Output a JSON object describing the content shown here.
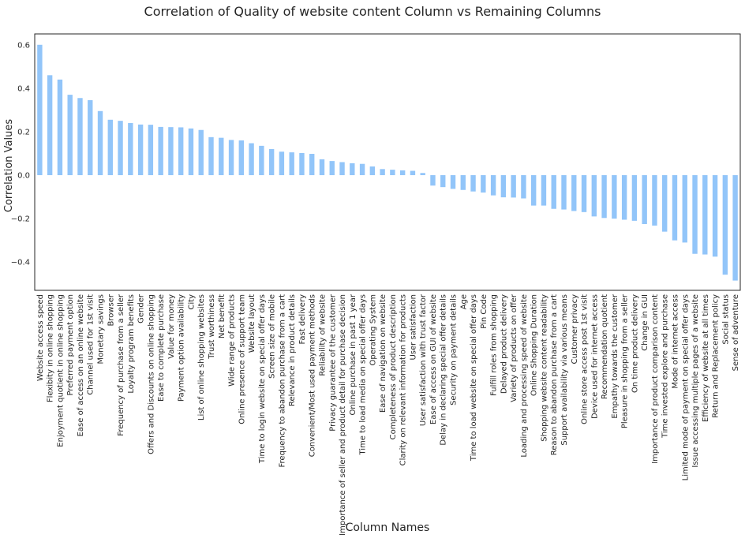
{
  "chart_data": {
    "type": "bar",
    "title": "Correlation of Quality of website content Column vs Remaining Columns",
    "xlabel": "Column Names",
    "ylabel": "Correlation Values",
    "ylim": [
      -0.53,
      0.65
    ],
    "yticks": [
      -0.4,
      -0.2,
      0.0,
      0.2,
      0.4,
      0.6
    ],
    "yticklabels": [
      "−0.4",
      "−0.2",
      "0.0",
      "0.2",
      "0.4",
      "0.6"
    ],
    "grid": false,
    "bar_color": "#92c5f9",
    "categories": [
      "Website access speed",
      "Flexibity in online shopping",
      "Enjoyment quotient in online shopping",
      "Preferred payment option",
      "Ease of access on an online website",
      "Channel used for 1st visit",
      "Monetary savings",
      "Browser",
      "Frequency of purchase from a seller",
      "Loyalty program benefits",
      "Gender",
      "Offers and Discounts on online shopping",
      "Ease to complete purchase",
      "Value for money",
      "Payment option availability",
      "City",
      "List of online shopping websites",
      "Trust worthiness",
      "Net benefit",
      "Wide range of products",
      "Online presence of support team",
      "Website layout",
      "Time to login website on special offer days",
      "Screen size of mobile",
      "Frequency to abandon purchase from a cart",
      "Relevance in product details",
      "Fast delivery",
      "Convenient/Most used payment methods",
      "Reliability of website",
      "Privacy guarantee of the customer",
      "Importance of seller and product detail for purchase decision",
      "Online purchase in past 1 year",
      "Time to load media on special offer days",
      "Operating System",
      "Ease of navigation on website",
      "Completeness of product description",
      "Clarity on relevant information for products",
      "User satisfaction",
      "User satisfaction with trust factor",
      "Ease of access on GUI of website",
      "Delay in declaring special offer details",
      "Security on payment details",
      "Age",
      "Time to load website on special offer days",
      "Pin Code",
      "Fulfill roles from shopping",
      "Delayed product delivery",
      "Variety of products on offer",
      "Loading and processing speed of website",
      "Online Shopping Duration",
      "Shopping website content readability",
      "Reason to abandon purchase from a cart",
      "Support availability via various means",
      "Customer privacy",
      "Online store access post 1st visit",
      "Device used for internet access",
      "Recommendation quotient",
      "Empathy towards the customer",
      "Pleasure in shopping from a seller",
      "On time product delivery",
      "Change in GUI",
      "Importance of product comparison content",
      "Time invested explore and purchase",
      "Mode of internet access",
      "Limited mode of payment on special offer days",
      "Issue accessing multiple pages of a website",
      "Efficiency of website at all times",
      "Return and Replacement policy",
      "Social status",
      "Sense of adventure"
    ],
    "values": [
      0.6,
      0.46,
      0.44,
      0.37,
      0.355,
      0.345,
      0.295,
      0.255,
      0.25,
      0.24,
      0.233,
      0.232,
      0.222,
      0.221,
      0.22,
      0.215,
      0.208,
      0.175,
      0.172,
      0.162,
      0.16,
      0.147,
      0.135,
      0.12,
      0.108,
      0.105,
      0.102,
      0.098,
      0.073,
      0.065,
      0.06,
      0.055,
      0.052,
      0.04,
      0.028,
      0.025,
      0.022,
      0.02,
      0.01,
      -0.048,
      -0.055,
      -0.063,
      -0.068,
      -0.075,
      -0.08,
      -0.093,
      -0.102,
      -0.103,
      -0.107,
      -0.14,
      -0.14,
      -0.155,
      -0.158,
      -0.165,
      -0.17,
      -0.19,
      -0.197,
      -0.2,
      -0.205,
      -0.21,
      -0.225,
      -0.232,
      -0.26,
      -0.3,
      -0.31,
      -0.362,
      -0.365,
      -0.375,
      -0.458,
      -0.485
    ]
  }
}
